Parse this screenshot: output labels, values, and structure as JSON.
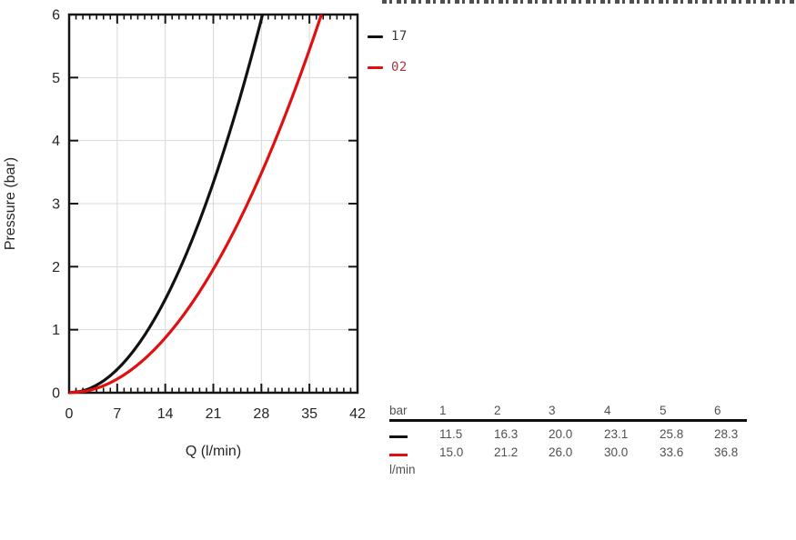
{
  "colors": {
    "axis": "#141414",
    "grid": "#d9d9d9",
    "tick_label": "#262626",
    "table_text": "#515151",
    "table_rule": "#0f0f0f"
  },
  "legend": {
    "items": [
      {
        "label": "17",
        "swatch_color": "#111111",
        "label_color": "#3a3a3a"
      },
      {
        "label": "02",
        "swatch_color": "#e01010",
        "label_color": "#a83a3a"
      }
    ]
  },
  "chart_data": {
    "type": "line",
    "title": "",
    "xlabel": "Q (l/min)",
    "ylabel": "Pressure (bar)",
    "xlim": [
      0,
      42
    ],
    "ylim": [
      0,
      6
    ],
    "x_major_ticks": [
      0,
      7,
      14,
      21,
      28,
      35,
      42
    ],
    "x_minor_tick_step": 1,
    "y_major_ticks": [
      0,
      1,
      2,
      3,
      4,
      5,
      6
    ],
    "grid": true,
    "legend_position": "outside upper right",
    "series": [
      {
        "name": "17",
        "color": "#111111",
        "points_bar": [
          1,
          2,
          3,
          4,
          5,
          6
        ],
        "points_l_min": [
          11.5,
          16.3,
          20.0,
          23.1,
          25.8,
          28.3
        ]
      },
      {
        "name": "02",
        "color": "#e01010",
        "points_bar": [
          1,
          2,
          3,
          4,
          5,
          6
        ],
        "points_l_min": [
          15.0,
          21.2,
          26.0,
          30.0,
          33.6,
          36.8
        ]
      }
    ]
  },
  "table": {
    "header_label": "bar",
    "header_values": [
      "1",
      "2",
      "3",
      "4",
      "5",
      "6"
    ],
    "unit_label": "l/min",
    "rows": [
      {
        "series": "17",
        "color": "#111111",
        "values": [
          "11.5",
          "16.3",
          "20.0",
          "23.1",
          "25.8",
          "28.3"
        ]
      },
      {
        "series": "02",
        "color": "#e01010",
        "values": [
          "15.0",
          "21.2",
          "26.0",
          "30.0",
          "33.6",
          "36.8"
        ]
      }
    ]
  }
}
